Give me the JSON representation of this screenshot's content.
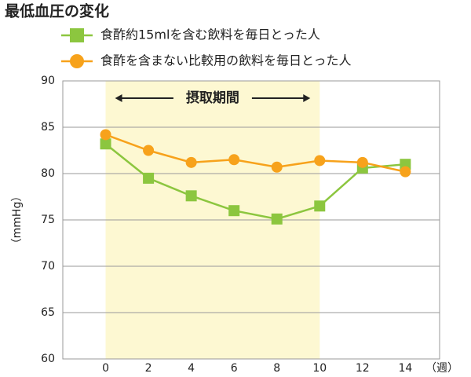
{
  "chart_data": {
    "type": "line",
    "title": "最低血圧の変化",
    "y_label": "（mmHg）",
    "x_unit_label": "（週）",
    "x": [
      0,
      2,
      4,
      6,
      8,
      10,
      12,
      14
    ],
    "series": [
      {
        "name": "食酢約15mlを含む飲料を毎日とった人",
        "color": "#8cc63f",
        "marker": "square",
        "values": [
          83.2,
          79.5,
          77.6,
          76.0,
          75.1,
          76.5,
          80.6,
          81.0
        ]
      },
      {
        "name": "食酢を含まない比較用の飲料を毎日とった人",
        "color": "#f7a21b",
        "marker": "circle",
        "values": [
          84.2,
          82.5,
          81.2,
          81.5,
          80.7,
          81.4,
          81.2,
          80.2
        ]
      }
    ],
    "highlight": {
      "from": 0,
      "to": 10,
      "label": "摂取期間",
      "color": "#fdf8d2"
    },
    "xlim": [
      -2,
      15.6
    ],
    "ylim": [
      60,
      90
    ],
    "xticks": [
      0,
      2,
      4,
      6,
      8,
      10,
      12,
      14
    ],
    "yticks": [
      60,
      65,
      70,
      75,
      80,
      85,
      90
    ],
    "grid": true
  }
}
